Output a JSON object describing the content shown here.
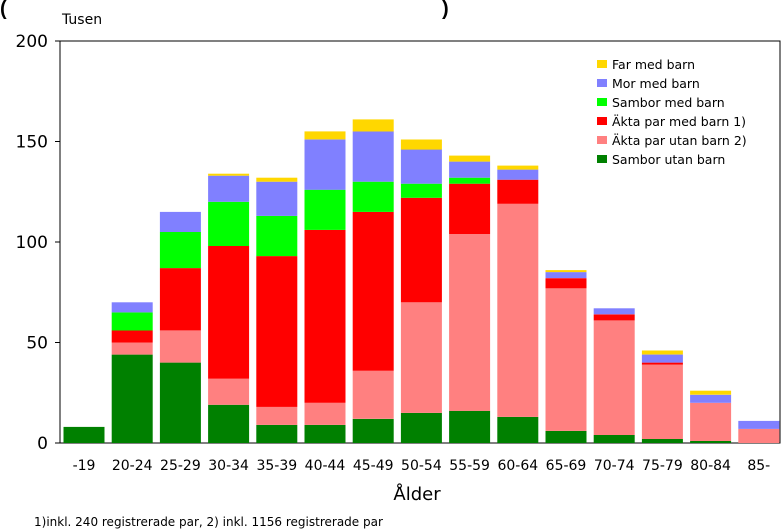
{
  "chart_data": {
    "type": "bar",
    "stacked": true,
    "title_fragment": "(",
    "title_fragment_end": ")",
    "ylabel": "Tusen",
    "xlabel": "Ålder",
    "footnote": "1)inkl. 240 registrerade par, 2) inkl. 1156 registrerade par",
    "ylim": [
      0,
      200
    ],
    "yticks": [
      0,
      50,
      100,
      150,
      200
    ],
    "grid": false,
    "legend_position": "top-right",
    "categories": [
      "-19",
      "20-24",
      "25-29",
      "30-34",
      "35-39",
      "40-44",
      "45-49",
      "50-54",
      "55-59",
      "60-64",
      "65-69",
      "70-74",
      "75-79",
      "80-84",
      "85-"
    ],
    "series": [
      {
        "name": "Sambor utan barn",
        "color": "#008000",
        "values": [
          8,
          44,
          40,
          19,
          9,
          9,
          12,
          15,
          16,
          13,
          6,
          4,
          2,
          1,
          0
        ]
      },
      {
        "name": "Äkta par utan barn 2)",
        "color": "#ff8080",
        "values": [
          0,
          6,
          16,
          13,
          9,
          11,
          24,
          55,
          88,
          106,
          71,
          57,
          37,
          19,
          7
        ]
      },
      {
        "name": "Äkta par med barn 1)",
        "color": "#ff0000",
        "values": [
          0,
          6,
          31,
          66,
          75,
          86,
          79,
          52,
          25,
          12,
          5,
          3,
          1,
          0,
          0
        ]
      },
      {
        "name": "Sambor med barn",
        "color": "#00ff00",
        "values": [
          0,
          9,
          18,
          22,
          20,
          20,
          15,
          7,
          3,
          0,
          0,
          0,
          0,
          0,
          0
        ]
      },
      {
        "name": "Mor med barn",
        "color": "#8080ff",
        "values": [
          0,
          5,
          10,
          13,
          17,
          25,
          25,
          17,
          8,
          5,
          3,
          3,
          4,
          4,
          4
        ]
      },
      {
        "name": "Far med barn",
        "color": "#ffd700",
        "values": [
          0,
          0,
          0,
          1,
          2,
          4,
          6,
          5,
          3,
          2,
          1,
          0,
          2,
          2,
          0
        ]
      }
    ],
    "legend_order": [
      "Far med barn",
      "Mor med barn",
      "Sambor med barn",
      "Äkta par med barn 1)",
      "Äkta par utan barn 2)",
      "Sambor utan barn"
    ]
  }
}
